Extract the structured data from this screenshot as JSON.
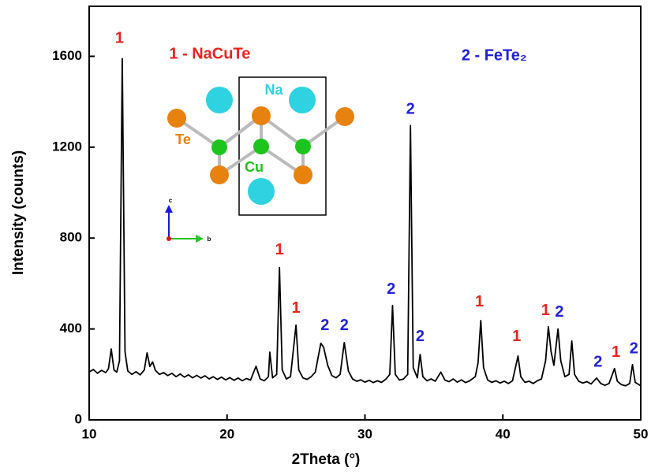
{
  "chart_data": {
    "type": "line",
    "xlabel": "2Theta (°)",
    "ylabel": "Intensity (counts)",
    "xlim": [
      10,
      50
    ],
    "ylim": [
      0,
      1820
    ],
    "xticks": [
      10,
      20,
      30,
      40,
      50
    ],
    "yticks": [
      0,
      400,
      800,
      1200,
      1600
    ],
    "series": [
      {
        "color": "#000000",
        "x": [
          10.0,
          10.3,
          10.6,
          10.9,
          11.2,
          11.4,
          11.6,
          11.8,
          12.0,
          12.2,
          12.4,
          12.6,
          12.8,
          13.1,
          13.4,
          13.7,
          14.0,
          14.2,
          14.4,
          14.6,
          14.8,
          15.1,
          15.4,
          15.7,
          16.0,
          16.3,
          16.6,
          16.9,
          17.2,
          17.5,
          17.8,
          18.1,
          18.4,
          18.7,
          19.0,
          19.3,
          19.6,
          19.9,
          20.2,
          20.5,
          20.8,
          21.1,
          21.4,
          21.7,
          22.1,
          22.4,
          22.7,
          23.0,
          23.1,
          23.3,
          23.6,
          23.8,
          24.0,
          24.3,
          24.6,
          25.0,
          25.2,
          25.5,
          25.8,
          26.1,
          26.4,
          26.8,
          27.0,
          27.3,
          27.6,
          27.9,
          28.2,
          28.5,
          28.8,
          29.1,
          29.4,
          29.7,
          30.0,
          30.3,
          30.6,
          30.9,
          31.2,
          31.5,
          31.8,
          32.0,
          32.2,
          32.5,
          32.8,
          33.1,
          33.3,
          33.5,
          33.8,
          34.0,
          34.2,
          34.5,
          34.8,
          35.1,
          35.5,
          35.8,
          36.1,
          36.4,
          36.7,
          37.0,
          37.3,
          37.6,
          38.0,
          38.2,
          38.4,
          38.6,
          38.9,
          39.2,
          39.5,
          39.8,
          40.1,
          40.4,
          40.7,
          41.1,
          41.3,
          41.6,
          41.9,
          42.2,
          42.5,
          42.8,
          43.1,
          43.3,
          43.5,
          43.7,
          44.0,
          44.2,
          44.5,
          44.8,
          45.0,
          45.2,
          45.5,
          45.8,
          46.1,
          46.4,
          46.8,
          47.1,
          47.4,
          47.7,
          48.1,
          48.3,
          48.6,
          48.9,
          49.2,
          49.4,
          49.6,
          50.0
        ],
        "values": [
          210,
          222,
          205,
          218,
          208,
          225,
          312,
          220,
          210,
          260,
          1590,
          300,
          215,
          200,
          212,
          198,
          220,
          295,
          235,
          255,
          218,
          200,
          208,
          195,
          205,
          190,
          202,
          188,
          198,
          185,
          196,
          184,
          194,
          180,
          190,
          178,
          188,
          176,
          186,
          174,
          184,
          172,
          182,
          175,
          236,
          180,
          172,
          190,
          298,
          185,
          200,
          670,
          220,
          180,
          190,
          417,
          220,
          185,
          178,
          190,
          210,
          337,
          320,
          240,
          195,
          185,
          200,
          340,
          215,
          180,
          170,
          176,
          166,
          174,
          164,
          172,
          165,
          178,
          200,
          503,
          200,
          175,
          180,
          200,
          1295,
          230,
          185,
          288,
          190,
          172,
          180,
          170,
          210,
          175,
          168,
          180,
          166,
          176,
          164,
          172,
          190,
          250,
          437,
          230,
          175,
          165,
          172,
          162,
          170,
          160,
          172,
          281,
          190,
          165,
          170,
          160,
          172,
          180,
          260,
          410,
          300,
          240,
          400,
          260,
          190,
          200,
          347,
          200,
          170,
          162,
          168,
          158,
          184,
          160,
          152,
          160,
          226,
          170,
          155,
          150,
          160,
          243,
          165,
          150
        ]
      }
    ],
    "annotations": [
      {
        "text": "1",
        "x": 12.2,
        "y": 1677,
        "color": "#e8231f"
      },
      {
        "text": "1 - NaCuTe",
        "x": 15.8,
        "y": 1608,
        "color": "#e8231f"
      },
      {
        "text": "2 - FeTe₂",
        "x": 37.0,
        "y": 1600,
        "color": "#2121d8"
      },
      {
        "text": "2",
        "x": 33.3,
        "y": 1365,
        "color": "#2121d8"
      },
      {
        "text": "1",
        "x": 23.8,
        "y": 747,
        "color": "#e8231f"
      },
      {
        "text": "1",
        "x": 25.0,
        "y": 490,
        "color": "#e8231f"
      },
      {
        "text": "2",
        "x": 27.1,
        "y": 413,
        "color": "#2121d8"
      },
      {
        "text": "2",
        "x": 28.5,
        "y": 413,
        "color": "#2121d8"
      },
      {
        "text": "2",
        "x": 31.9,
        "y": 573,
        "color": "#2121d8"
      },
      {
        "text": "2",
        "x": 34.0,
        "y": 365,
        "color": "#2121d8"
      },
      {
        "text": "1",
        "x": 38.3,
        "y": 517,
        "color": "#e8231f"
      },
      {
        "text": "1",
        "x": 41.0,
        "y": 365,
        "color": "#e8231f"
      },
      {
        "text": "1",
        "x": 43.1,
        "y": 479,
        "color": "#e8231f"
      },
      {
        "text": "2",
        "x": 44.1,
        "y": 472,
        "color": "#2121d8"
      },
      {
        "text": "2",
        "x": 46.9,
        "y": 253,
        "color": "#2121d8"
      },
      {
        "text": "1",
        "x": 48.2,
        "y": 295,
        "color": "#e8231f"
      },
      {
        "text": "2",
        "x": 49.5,
        "y": 312,
        "color": "#2121d8"
      }
    ]
  },
  "inset": {
    "labels": [
      "Na",
      "Te",
      "Cu",
      "c",
      "b"
    ]
  }
}
